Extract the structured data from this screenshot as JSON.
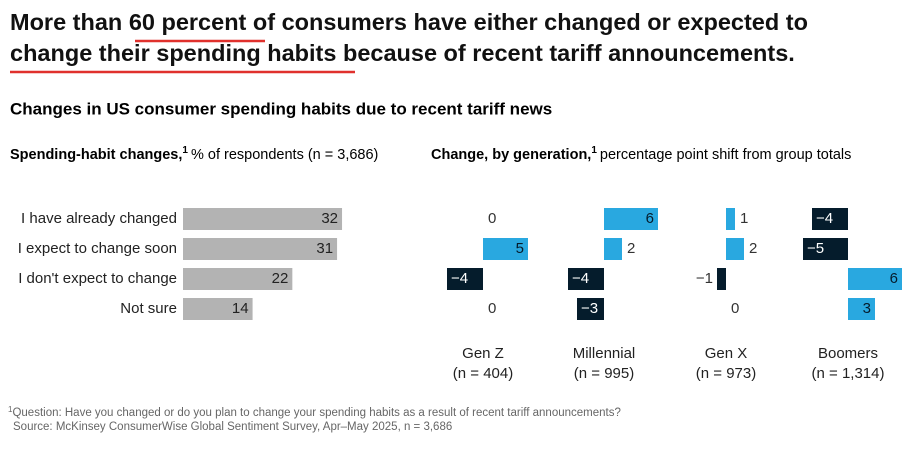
{
  "headline": {
    "parts": [
      "More than ",
      "60 percent",
      " of consumers have either changed or expected to ",
      "change their spending habits",
      " because of recent tariff announcements."
    ]
  },
  "subtitle": "Changes in US consumer spending habits due to recent tariff news",
  "chart_data": [
    {
      "type": "bar",
      "title": "Spending-habit changes,",
      "title_marker": "1",
      "subtitle": "% of respondents (n = 3,686)",
      "categories": [
        "I have already changed",
        "I expect to change soon",
        "I don't expect to change",
        "Not sure"
      ],
      "values": [
        32,
        31,
        22,
        14
      ],
      "color": "#b3b3b3"
    },
    {
      "type": "diverging",
      "title": "Change, by generation,",
      "title_marker": "1",
      "subtitle": "percentage point shift from group totals",
      "positive_color": "#29a8e0",
      "negative_color": "#051c2c",
      "series": [
        {
          "name": "Gen Z",
          "note": "(n = 404)",
          "values": [
            0,
            5,
            -4,
            0
          ],
          "value_labels": [
            "0",
            "5",
            "−4",
            "0"
          ]
        },
        {
          "name": "Millennial",
          "note": "(n = 995)",
          "values": [
            6,
            2,
            -4,
            -3
          ],
          "value_labels": [
            "6",
            "2",
            "−4",
            "−3"
          ]
        },
        {
          "name": "Gen X",
          "note": "(n = 973)",
          "values": [
            1,
            2,
            -1,
            0
          ],
          "value_labels": [
            "1",
            "2",
            "−1",
            "0"
          ]
        },
        {
          "name": "Boomers",
          "note": "(n = 1,314)",
          "values": [
            -4,
            -5,
            6,
            3
          ],
          "value_labels": [
            "−4",
            "−5",
            "6",
            "3"
          ]
        }
      ]
    }
  ],
  "footnote": {
    "marker": "1",
    "text": "Question: Have you changed or do you plan to change your spending habits as a result of recent tariff announcements?"
  },
  "source": "Source: McKinsey ConsumerWise Global Sentiment Survey, Apr–May 2025, n = 3,686"
}
